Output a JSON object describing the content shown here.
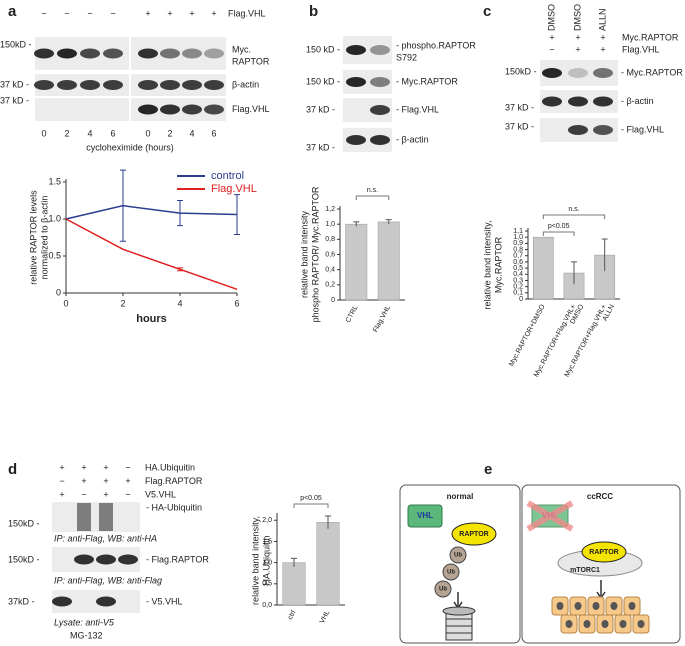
{
  "panels": {
    "a": {
      "label": "a",
      "row": {
        "name": "Flag.VHL",
        "signs": [
          "−",
          "−",
          "−",
          "−",
          "+",
          "+",
          "+",
          "+"
        ]
      },
      "blots": [
        {
          "marker": "150kD -",
          "name": [
            "Myc.",
            "RAPTOR"
          ]
        },
        {
          "marker": "37 kD -",
          "name": [
            "β-actin"
          ]
        },
        {
          "marker": "37 kD -",
          "name": [
            "Flag.VHL"
          ]
        }
      ],
      "lanes": [
        "0",
        "2",
        "4",
        "6",
        "0",
        "2",
        "4",
        "6"
      ],
      "lanes_title": "cycloheximide (hours)"
    },
    "b": {
      "label": "b",
      "blots": [
        {
          "marker": "150 kD -",
          "name": [
            "- phospho.RAPTOR",
            "S792"
          ]
        },
        {
          "marker": "150 kD -",
          "name": [
            "- Myc.RAPTOR"
          ]
        },
        {
          "marker": "37 kD -",
          "name": [
            "- Flag.VHL"
          ]
        },
        {
          "marker": "37 kD -",
          "name": [
            "- β-actin"
          ]
        }
      ]
    },
    "c": {
      "label": "c",
      "columns": [
        "DMSO",
        "DMSO",
        "ALLN"
      ],
      "rows": [
        {
          "name": "Myc.RAPTOR",
          "signs": [
            "+",
            "+",
            "+"
          ]
        },
        {
          "name": "Flag.VHL",
          "signs": [
            "−",
            "+",
            "+"
          ]
        }
      ],
      "blots": [
        {
          "marker": "150kD -",
          "name": [
            "- Myc.RAPTOR"
          ]
        },
        {
          "marker": "37 kD -",
          "name": [
            "- β-actin"
          ]
        },
        {
          "marker": "37 kD -",
          "name": [
            "- Flag.VHL"
          ]
        }
      ]
    },
    "d": {
      "label": "d",
      "rows": [
        {
          "name": "HA.Ubiquitin",
          "signs": [
            "+",
            "+",
            "+",
            "−"
          ]
        },
        {
          "name": "Flag.RAPTOR",
          "signs": [
            "−",
            "+",
            "+",
            "+"
          ]
        },
        {
          "name": "V5.VHL",
          "signs": [
            "+",
            "−",
            "+",
            "−"
          ]
        }
      ],
      "blots": [
        {
          "marker": "150kD -",
          "name": [
            "- HA-Ubiquitin"
          ],
          "caption": "IP: anti-Flag, WB: anti-HA"
        },
        {
          "marker": "150kD -",
          "name": [
            "- Flag.RAPTOR"
          ],
          "caption": "IP: anti-Flag, WB: anti-Flag"
        },
        {
          "marker": "37kD -",
          "name": [
            "- V5.VHL"
          ],
          "caption": "Lysate: anti-V5"
        }
      ],
      "footer": "MG-132"
    },
    "e": {
      "label": "e",
      "normal": {
        "title": "normal",
        "vhl": "VHL",
        "raptor": "RAPTOR",
        "ub": [
          "Ub",
          "Ub",
          "Ub"
        ]
      },
      "ccrcc": {
        "title": "ccRCC",
        "vhl": "VHL",
        "raptor": "RAPTOR",
        "complex": "mTORC1"
      }
    }
  },
  "chart_data": [
    {
      "type": "line",
      "xlabel": "hours",
      "ylabel": [
        "relative RAPTOR levels",
        "normalized to β-actin"
      ],
      "x": [
        0,
        2,
        4,
        6
      ],
      "xlim": [
        0,
        6
      ],
      "xticks": [
        0,
        2,
        4,
        6
      ],
      "ylim": [
        0,
        1.5
      ],
      "yticks": [
        0,
        0.5,
        {
          "value": 1,
          "label": "1.0"
        },
        1.5
      ],
      "legend": "upper right",
      "series": [
        {
          "name": "control",
          "color": "#2b3d8f",
          "values": [
            1,
            1.18,
            1.08,
            1.06
          ],
          "errors": [
            null,
            0.48,
            0.17,
            0.27
          ]
        },
        {
          "name": "Flag.VHL",
          "color": "#e02020",
          "values": [
            1,
            0.59,
            0.32,
            0.05
          ],
          "errors": [
            null,
            null,
            0.02,
            null
          ]
        }
      ]
    },
    {
      "type": "bar",
      "ylabel": [
        "relative band intensity",
        "phospho RAPTOR/ Myc.RAPTOR"
      ],
      "categories": [
        [
          "CTRL"
        ],
        [
          "Flag.VHL"
        ]
      ],
      "values": [
        1.0,
        1.03
      ],
      "errors": [
        0.03,
        0.03
      ],
      "color": "#c8c8c8",
      "ylim": [
        0,
        1.2
      ],
      "yticks": [
        0,
        {
          "value": 0.2,
          "label": "0,2"
        },
        {
          "value": 0.4,
          "label": "0,4"
        },
        {
          "value": 0.6,
          "label": "0,6"
        },
        {
          "value": 0.8,
          "label": "0,8"
        },
        {
          "value": 1.0,
          "label": "1,0"
        },
        {
          "value": 1.2,
          "label": "1,2"
        }
      ],
      "annotations": [
        "n.s."
      ]
    },
    {
      "type": "bar",
      "ylabel": [
        "relative band intensity,",
        "Myc.RAPTOR"
      ],
      "categories": [
        [
          "Myc.RAPTOR+DMSO"
        ],
        [
          "Myc.RAPTOR+Flag.VHL+",
          "DMSO"
        ],
        [
          "Myc.RAPTOR+Flag.VHL+",
          "ALLN"
        ]
      ],
      "values": [
        1.0,
        0.42,
        0.71
      ],
      "errors": [
        null,
        0.18,
        0.26
      ],
      "color": "#c8c8c8",
      "ylim": [
        0,
        1.1
      ],
      "yticks": [
        0,
        {
          "value": 0.1,
          "label": "0,1"
        },
        {
          "value": 0.2,
          "label": "0,2"
        },
        {
          "value": 0.3,
          "label": "0,3"
        },
        {
          "value": 0.4,
          "label": "0,4"
        },
        {
          "value": 0.5,
          "label": "0,5"
        },
        {
          "value": 0.6,
          "label": "0,6"
        },
        {
          "value": 0.7,
          "label": "0,7"
        },
        {
          "value": 0.8,
          "label": "0,8"
        },
        {
          "value": 0.9,
          "label": "0,9"
        },
        {
          "value": 1.0,
          "label": "1,0"
        },
        {
          "value": 1.1,
          "label": "1,1"
        }
      ],
      "annotations": [
        "p<0.05",
        "n.s."
      ]
    },
    {
      "type": "bar",
      "ylabel": [
        "relative band intensity,",
        "HA.Ubiquitin"
      ],
      "categories": [
        [
          "ctrl"
        ],
        [
          "VHL"
        ]
      ],
      "values": [
        1.0,
        1.95
      ],
      "errors": [
        0.1,
        0.15
      ],
      "color": "#c8c8c8",
      "ylim": [
        0,
        2.1
      ],
      "yticks": [
        {
          "value": 0,
          "label": "0,0"
        },
        {
          "value": 0.5,
          "label": "0,5"
        },
        {
          "value": 1.0,
          "label": "1,0"
        },
        {
          "value": 1.5,
          "label": "1,5"
        },
        {
          "value": 2.0,
          "label": "2,0"
        }
      ],
      "annotations": [
        "p<0.05"
      ]
    }
  ]
}
